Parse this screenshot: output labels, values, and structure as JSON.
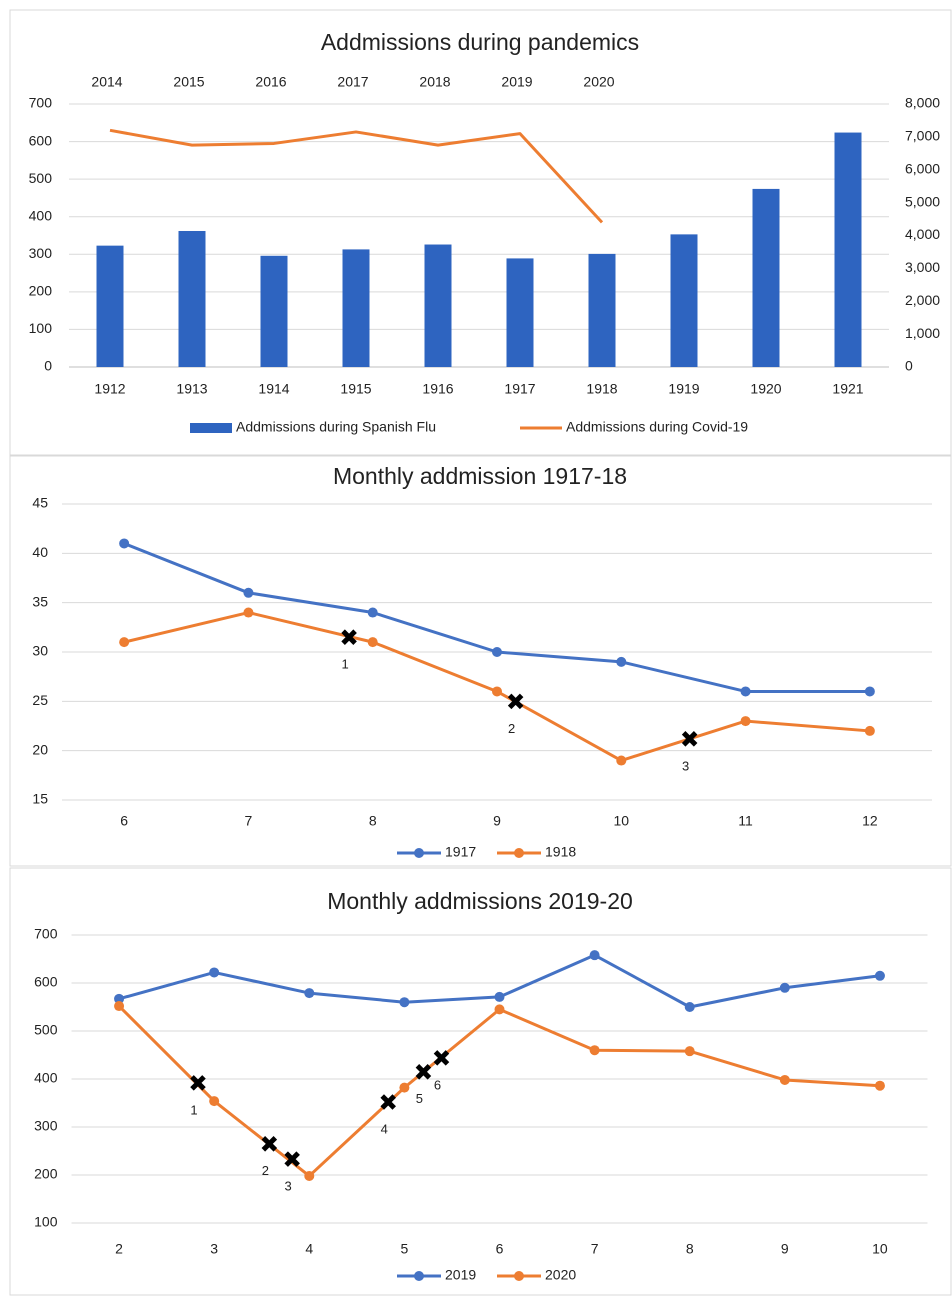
{
  "chart_data": [
    {
      "type": "bar",
      "title": "Addmissions during pandemics",
      "categories": [
        "1912",
        "1913",
        "1914",
        "1915",
        "1916",
        "1917",
        "1918",
        "1919",
        "1920",
        "1921"
      ],
      "categories_top": [
        "2014",
        "2015",
        "2016",
        "2017",
        "2018",
        "2019",
        "2020",
        null,
        null,
        null
      ],
      "series": [
        {
          "name": "Addmissions during Spanish Flu",
          "color": "#2e64c0",
          "values": [
            323,
            362,
            296,
            313,
            326,
            289,
            301,
            353,
            474,
            624
          ]
        },
        {
          "name": "Addmissions during Covid-19",
          "type": "line",
          "axis": "y2",
          "color": "#ed7d31",
          "values": [
            7200,
            6750,
            6800,
            7150,
            6750,
            7100,
            4400,
            null,
            null,
            null
          ]
        }
      ],
      "ylim": [
        0,
        700
      ],
      "yticks": [
        0,
        100,
        200,
        300,
        400,
        500,
        600,
        700
      ],
      "y2lim": [
        0,
        8000
      ],
      "y2ticks": [
        0,
        {
          "value": 1000,
          "label": "1,000"
        },
        {
          "value": 2000,
          "label": "2,000"
        },
        {
          "value": 3000,
          "label": "3,000"
        },
        {
          "value": 4000,
          "label": "4,000"
        },
        {
          "value": 5000,
          "label": "5,000"
        },
        {
          "value": 6000,
          "label": "6,000"
        },
        {
          "value": 7000,
          "label": "7,000"
        },
        {
          "value": 8000,
          "label": "8,000"
        }
      ],
      "grid": true
    },
    {
      "type": "line",
      "title": "Monthly addmission 1917-18",
      "x": [
        6,
        7,
        8,
        9,
        10,
        11,
        12
      ],
      "xlim": [
        5.5,
        12.5
      ],
      "xticks": [
        6,
        7,
        8,
        9,
        10,
        11,
        12
      ],
      "series": [
        {
          "name": "1917",
          "color": "#4472c4",
          "values": [
            41,
            36,
            34,
            30,
            29,
            26,
            26
          ]
        },
        {
          "name": "1918",
          "color": "#ed7d31",
          "values": [
            31,
            34,
            31,
            26,
            19,
            23,
            22
          ]
        }
      ],
      "ylim": [
        15,
        45
      ],
      "yticks": [
        15,
        20,
        25,
        30,
        35,
        40,
        45
      ],
      "grid": true,
      "annotations": [
        {
          "label": "1",
          "x": 7.81,
          "y": 31.5
        },
        {
          "label": "2",
          "x": 9.15,
          "y": 25
        },
        {
          "label": "3",
          "x": 10.55,
          "y": 21.2
        }
      ]
    },
    {
      "type": "line",
      "title": "Monthly addmissions 2019-20",
      "x": [
        2,
        3,
        4,
        5,
        6,
        7,
        8,
        9,
        10
      ],
      "xlim": [
        1.5,
        10.5
      ],
      "xticks": [
        2,
        3,
        4,
        5,
        6,
        7,
        8,
        9,
        10
      ],
      "series": [
        {
          "name": "2019",
          "color": "#4472c4",
          "values": [
            567,
            622,
            579,
            560,
            571,
            658,
            550,
            590,
            615
          ]
        },
        {
          "name": "2020",
          "color": "#ed7d31",
          "values": [
            552,
            354,
            198,
            382,
            545,
            460,
            458,
            398,
            386
          ]
        }
      ],
      "ylim": [
        100,
        700
      ],
      "yticks": [
        100,
        200,
        300,
        400,
        500,
        600,
        700
      ],
      "grid": true,
      "annotations": [
        {
          "label": "1",
          "x": 2.83,
          "y": 392
        },
        {
          "label": "2",
          "x": 3.58,
          "y": 265
        },
        {
          "label": "3",
          "x": 3.82,
          "y": 233
        },
        {
          "label": "4",
          "x": 4.83,
          "y": 352
        },
        {
          "label": "5",
          "x": 5.2,
          "y": 415
        },
        {
          "label": "6",
          "x": 5.39,
          "y": 444
        }
      ]
    }
  ]
}
